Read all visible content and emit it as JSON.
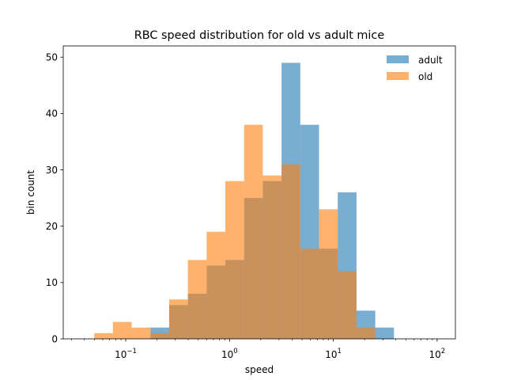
{
  "chart_data": {
    "type": "bar",
    "title": "RBC speed distribution for old vs adult mice",
    "xlabel": "speed",
    "ylabel": "bin count",
    "x_scale": "log",
    "xlim": [
      0.025,
      150
    ],
    "ylim": [
      0,
      52
    ],
    "x_ticks": [
      {
        "value": 0.1,
        "label": "10",
        "sup": "−1"
      },
      {
        "value": 1,
        "label": "10",
        "sup": "0"
      },
      {
        "value": 10,
        "label": "10",
        "sup": "1"
      },
      {
        "value": 100,
        "label": "10",
        "sup": "2"
      }
    ],
    "y_ticks": [
      0,
      10,
      20,
      30,
      40,
      50
    ],
    "bin_edges": [
      0.0497,
      0.0753,
      0.1141,
      0.1729,
      0.262,
      0.397,
      0.6016,
      0.9116,
      1.3814,
      2.0932,
      3.1719,
      4.8064,
      7.2833,
      11.0364,
      16.7236,
      25.3416,
      38.4005
    ],
    "series": [
      {
        "name": "adult",
        "color": "#1f77b4",
        "values": [
          0,
          0,
          0,
          2,
          6,
          8,
          13,
          14,
          25,
          28,
          49,
          38,
          16,
          26,
          5,
          2
        ]
      },
      {
        "name": "old",
        "color": "#ff7f0e",
        "values": [
          1,
          3,
          2,
          1,
          7,
          14,
          19,
          28,
          38,
          29,
          31,
          16,
          23,
          12,
          2,
          0
        ]
      }
    ],
    "legend_position": "top-right",
    "grid": false
  }
}
